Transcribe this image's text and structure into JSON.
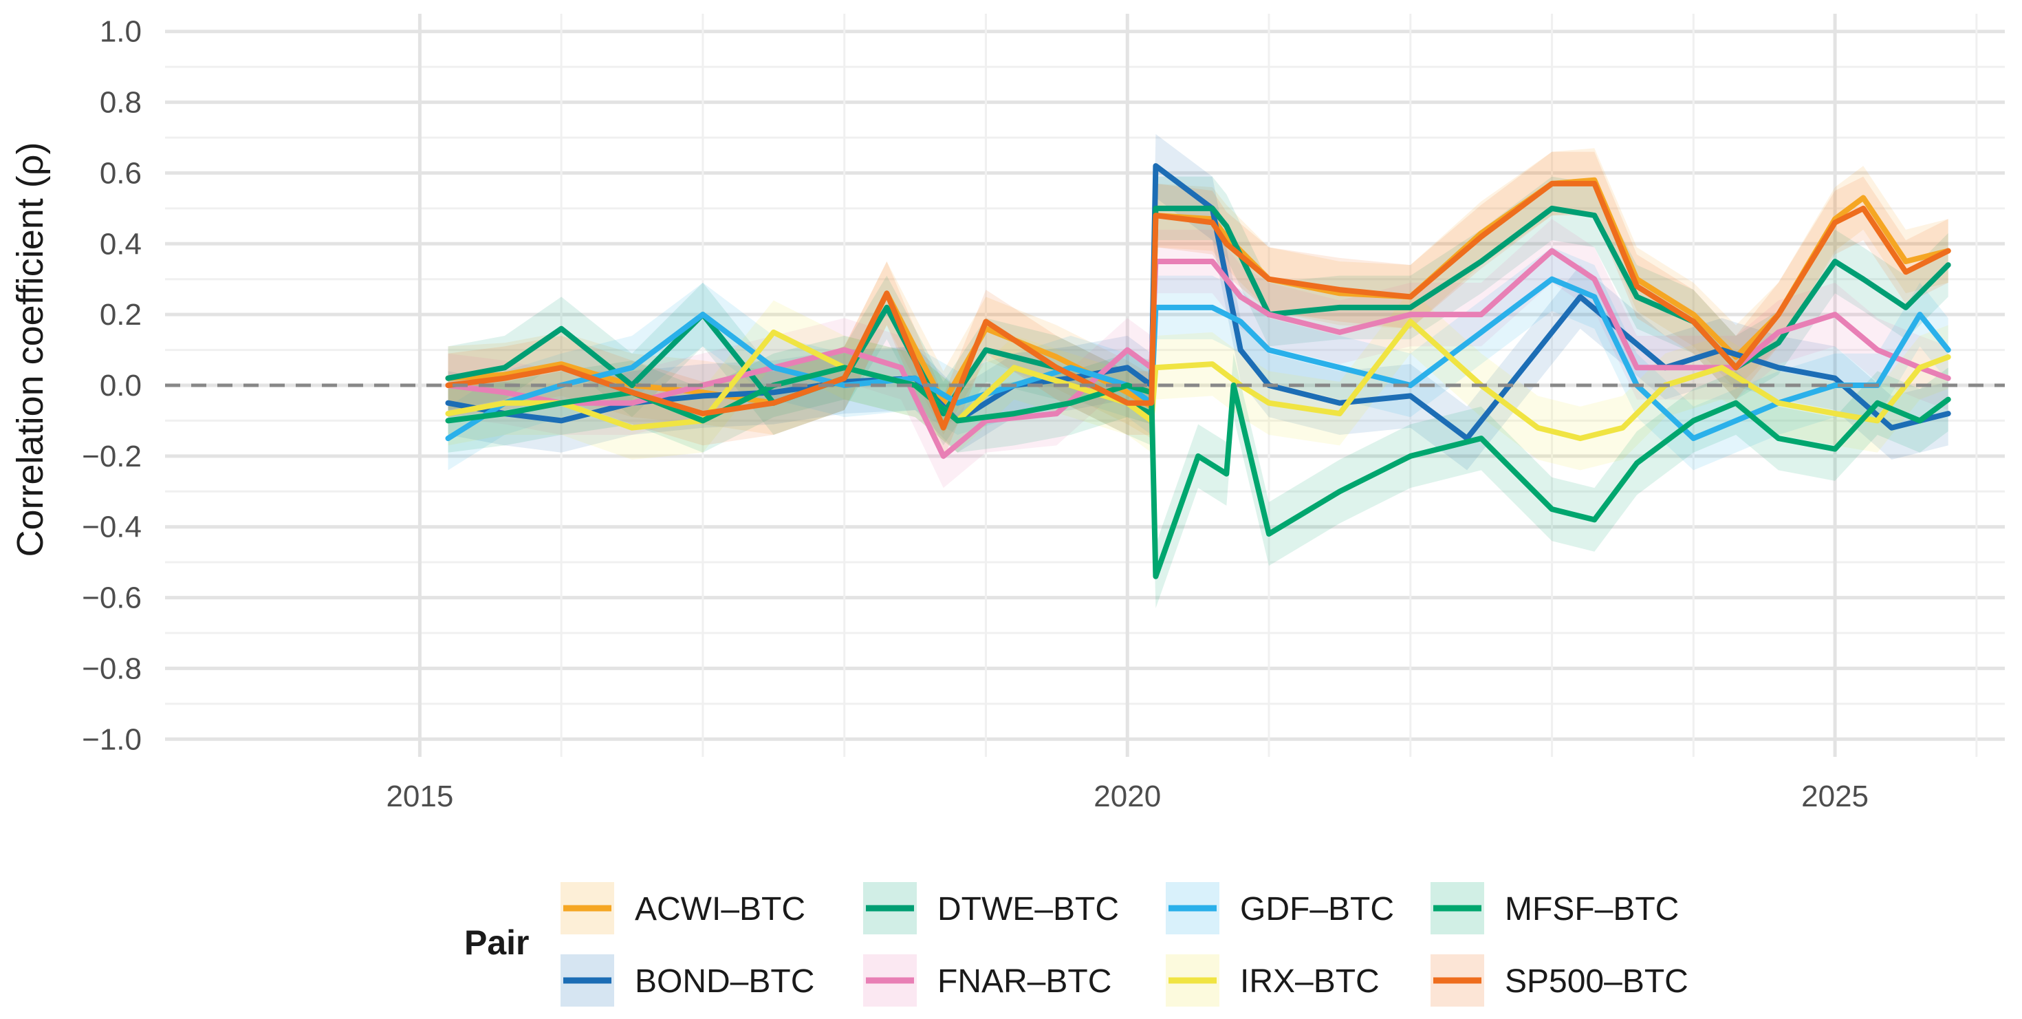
{
  "chart_data": {
    "type": "line",
    "title": "",
    "xlabel": "",
    "ylabel": "Correlation coefficient (ρ)",
    "xlim": [
      2013.2,
      2026.2
    ],
    "ylim": [
      -1.05,
      1.05
    ],
    "x_ticks": [
      2015,
      2020,
      2025
    ],
    "x_tick_labels": [
      "2015",
      "2020",
      "2025"
    ],
    "y_ticks": [
      -1.0,
      -0.8,
      -0.6,
      -0.4,
      -0.2,
      0.0,
      0.2,
      0.4,
      0.6,
      0.8,
      1.0
    ],
    "y_tick_labels": [
      "−1.0",
      "−0.8",
      "−0.6",
      "−0.4",
      "−0.2",
      "0.0",
      "0.2",
      "0.4",
      "0.6",
      "0.8",
      "1.0"
    ],
    "reference_line_y": 0,
    "grid": true,
    "legend_title": "Pair",
    "legend_position": "bottom",
    "band_half_width": 0.09,
    "series": [
      {
        "name": "ACWI–BTC",
        "color": "#f5a623",
        "x": [
          2015.2,
          2015.6,
          2016.0,
          2016.5,
          2017.0,
          2017.5,
          2018.0,
          2018.3,
          2018.7,
          2019.0,
          2019.5,
          2020.0,
          2020.17,
          2020.2,
          2020.6,
          2020.7,
          2021.0,
          2021.5,
          2022.0,
          2022.5,
          2023.0,
          2023.3,
          2023.6,
          2024.0,
          2024.3,
          2024.6,
          2025.0,
          2025.2,
          2025.5,
          2025.8
        ],
        "y": [
          0.02,
          0.03,
          0.06,
          0.0,
          -0.02,
          -0.05,
          0.02,
          0.26,
          -0.05,
          0.16,
          0.08,
          -0.02,
          -0.06,
          0.48,
          0.47,
          0.42,
          0.3,
          0.26,
          0.25,
          0.43,
          0.57,
          0.58,
          0.3,
          0.2,
          0.08,
          0.2,
          0.47,
          0.53,
          0.35,
          0.38
        ]
      },
      {
        "name": "BOND–BTC",
        "color": "#1c6db5",
        "x": [
          2015.2,
          2015.6,
          2016.0,
          2016.5,
          2017.0,
          2017.5,
          2018.0,
          2018.5,
          2018.8,
          2019.2,
          2019.6,
          2020.0,
          2020.17,
          2020.2,
          2020.6,
          2020.8,
          2021.0,
          2021.5,
          2022.0,
          2022.4,
          2022.8,
          2023.2,
          2023.5,
          2023.8,
          2024.2,
          2024.6,
          2025.0,
          2025.4,
          2025.8
        ],
        "y": [
          -0.05,
          -0.08,
          -0.1,
          -0.05,
          -0.03,
          -0.02,
          0.01,
          0.02,
          -0.1,
          0.0,
          0.02,
          0.05,
          0.0,
          0.62,
          0.5,
          0.1,
          0.0,
          -0.05,
          -0.03,
          -0.15,
          0.05,
          0.25,
          0.15,
          0.05,
          0.1,
          0.05,
          0.02,
          -0.12,
          -0.08
        ]
      },
      {
        "name": "DTWE–BTC",
        "color": "#009e73",
        "x": [
          2015.2,
          2015.6,
          2016.0,
          2016.5,
          2017.0,
          2017.5,
          2018.0,
          2018.3,
          2018.7,
          2019.0,
          2019.5,
          2020.0,
          2020.17,
          2020.2,
          2020.6,
          2020.7,
          2021.0,
          2021.5,
          2022.0,
          2022.5,
          2023.0,
          2023.3,
          2023.6,
          2024.0,
          2024.3,
          2024.6,
          2025.0,
          2025.2,
          2025.5,
          2025.8
        ],
        "y": [
          0.02,
          0.05,
          0.16,
          0.0,
          0.2,
          -0.05,
          0.02,
          0.22,
          -0.08,
          0.1,
          0.05,
          -0.05,
          -0.08,
          0.5,
          0.5,
          0.45,
          0.2,
          0.22,
          0.22,
          0.35,
          0.5,
          0.48,
          0.25,
          0.18,
          0.05,
          0.12,
          0.35,
          0.3,
          0.22,
          0.34
        ]
      },
      {
        "name": "FNAR–BTC",
        "color": "#e87fb5",
        "x": [
          2015.2,
          2015.6,
          2016.0,
          2016.5,
          2017.0,
          2017.5,
          2018.0,
          2018.4,
          2018.7,
          2019.0,
          2019.5,
          2020.0,
          2020.17,
          2020.2,
          2020.6,
          2020.8,
          2021.0,
          2021.5,
          2022.0,
          2022.5,
          2023.0,
          2023.3,
          2023.6,
          2024.0,
          2024.3,
          2024.6,
          2025.0,
          2025.3,
          2025.6,
          2025.8
        ],
        "y": [
          0.0,
          -0.02,
          -0.05,
          -0.05,
          0.0,
          0.05,
          0.1,
          0.05,
          -0.2,
          -0.1,
          -0.08,
          0.1,
          0.05,
          0.35,
          0.35,
          0.25,
          0.2,
          0.15,
          0.2,
          0.2,
          0.38,
          0.3,
          0.05,
          0.05,
          0.05,
          0.15,
          0.2,
          0.1,
          0.05,
          0.02
        ]
      },
      {
        "name": "GDF–BTC",
        "color": "#2ab0ea",
        "x": [
          2015.2,
          2015.6,
          2016.0,
          2016.5,
          2017.0,
          2017.5,
          2018.0,
          2018.5,
          2018.8,
          2019.2,
          2019.6,
          2020.0,
          2020.17,
          2020.2,
          2020.6,
          2020.8,
          2021.0,
          2021.5,
          2022.0,
          2022.5,
          2023.0,
          2023.3,
          2023.6,
          2024.0,
          2024.3,
          2024.6,
          2025.0,
          2025.3,
          2025.6,
          2025.8
        ],
        "y": [
          -0.15,
          -0.05,
          0.0,
          0.05,
          0.2,
          0.05,
          0.0,
          0.02,
          -0.05,
          0.0,
          0.05,
          0.0,
          -0.05,
          0.22,
          0.22,
          0.18,
          0.1,
          0.05,
          0.0,
          0.15,
          0.3,
          0.25,
          0.0,
          -0.15,
          -0.1,
          -0.05,
          0.0,
          0.0,
          0.2,
          0.1
        ]
      },
      {
        "name": "IRX–BTC",
        "color": "#f0e442",
        "x": [
          2015.2,
          2015.6,
          2016.0,
          2016.5,
          2017.0,
          2017.5,
          2018.0,
          2018.5,
          2018.8,
          2019.2,
          2019.6,
          2020.0,
          2020.17,
          2020.2,
          2020.6,
          2020.8,
          2021.0,
          2021.5,
          2022.0,
          2022.5,
          2022.9,
          2023.2,
          2023.5,
          2023.8,
          2024.2,
          2024.6,
          2025.0,
          2025.3,
          2025.6,
          2025.8
        ],
        "y": [
          -0.08,
          -0.05,
          -0.05,
          -0.12,
          -0.1,
          0.15,
          0.05,
          0.0,
          -0.1,
          0.05,
          0.0,
          -0.05,
          -0.1,
          0.05,
          0.06,
          0.0,
          -0.05,
          -0.08,
          0.18,
          0.0,
          -0.12,
          -0.15,
          -0.12,
          0.0,
          0.05,
          -0.05,
          -0.08,
          -0.1,
          0.05,
          0.08
        ]
      },
      {
        "name": "MFSF–BTC",
        "color": "#00a66e",
        "x": [
          2015.2,
          2015.6,
          2016.0,
          2016.5,
          2017.0,
          2017.5,
          2018.0,
          2018.5,
          2018.8,
          2019.2,
          2019.6,
          2020.0,
          2020.17,
          2020.2,
          2020.5,
          2020.7,
          2020.75,
          2021.0,
          2021.5,
          2022.0,
          2022.5,
          2023.0,
          2023.3,
          2023.6,
          2024.0,
          2024.3,
          2024.6,
          2025.0,
          2025.3,
          2025.6,
          2025.8
        ],
        "y": [
          -0.1,
          -0.08,
          -0.05,
          -0.02,
          -0.1,
          0.0,
          0.05,
          0.0,
          -0.1,
          -0.08,
          -0.05,
          0.0,
          -0.02,
          -0.54,
          -0.2,
          -0.25,
          0.0,
          -0.42,
          -0.3,
          -0.2,
          -0.15,
          -0.35,
          -0.38,
          -0.22,
          -0.1,
          -0.05,
          -0.15,
          -0.18,
          -0.05,
          -0.1,
          -0.04
        ]
      },
      {
        "name": "SP500–BTC",
        "color": "#ee6d1d",
        "x": [
          2015.2,
          2015.6,
          2016.0,
          2016.5,
          2017.0,
          2017.5,
          2018.0,
          2018.3,
          2018.7,
          2019.0,
          2019.5,
          2020.0,
          2020.17,
          2020.2,
          2020.6,
          2020.7,
          2021.0,
          2021.5,
          2022.0,
          2022.5,
          2023.0,
          2023.3,
          2023.6,
          2024.0,
          2024.3,
          2024.6,
          2025.0,
          2025.2,
          2025.5,
          2025.8
        ],
        "y": [
          0.0,
          0.02,
          0.05,
          -0.02,
          -0.08,
          -0.05,
          0.02,
          0.26,
          -0.12,
          0.18,
          0.05,
          -0.05,
          -0.05,
          0.48,
          0.46,
          0.4,
          0.3,
          0.27,
          0.25,
          0.42,
          0.57,
          0.57,
          0.28,
          0.18,
          0.05,
          0.2,
          0.46,
          0.5,
          0.32,
          0.38
        ]
      }
    ]
  }
}
